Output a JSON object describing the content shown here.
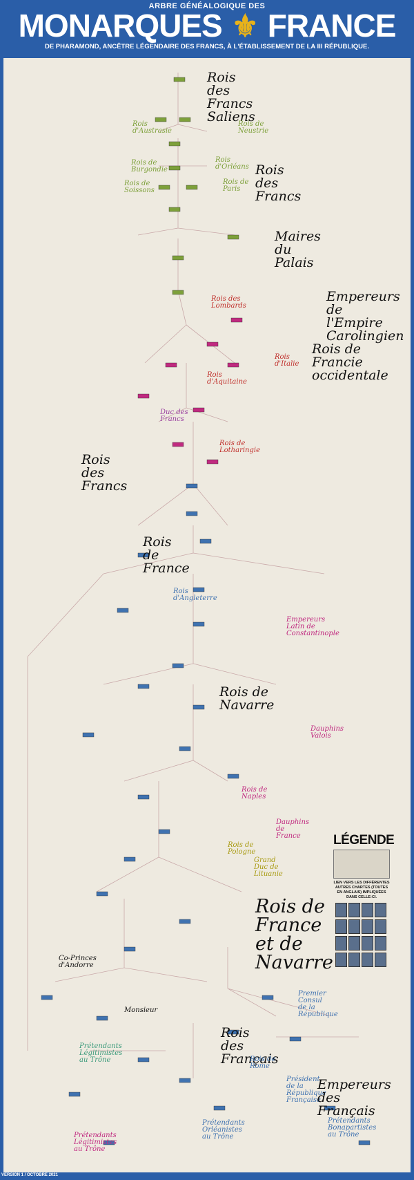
{
  "header": {
    "sup_title": "ARBRE GÉNÉALOGIQUE DES",
    "title_left": "MONARQUES",
    "title_right": "FRANCE",
    "fleur_icon": "fleur-de-lis-icon",
    "subtitle": "DE PHARAMOND, ANCÊTRE LÉGENDAIRE DES FRANCS, À L'ÉTABLISSEMENT DE LA III RÉPUBLIQUE."
  },
  "sections": {
    "rois_francs_saliens": "Rois des Francs Saliens",
    "rois_austrasie": "Rois d'Austrasie",
    "rois_neustrie": "Rois de Neustrie",
    "rois_burgondie": "Rois de Burgondie",
    "rois_orleans": "Rois d'Orléans",
    "rois_des_francs_1": "Rois des Francs",
    "rois_soissons": "Rois de Soissons",
    "rois_paris": "Rois de Paris",
    "maires_palais": "Maires du Palais",
    "empereurs_carolingien": "Empereurs de l'Empire Carolingien",
    "rois_lombards": "Rois des Lombards",
    "rois_francie": "Rois de Francie occidentale",
    "rois_italie": "Rois d'Italie",
    "rois_aquitaine": "Rois d'Aquitaine",
    "duc_francs": "Duc des Francs",
    "rois_lotharingie": "Rois de Lotharingie",
    "rois_des_francs_2": "Rois des Francs",
    "rois_france": "Rois de France",
    "rois_angleterre": "Rois d'Angleterre",
    "empereurs_latin": "Empereurs Latin de Constantinople",
    "rois_navarre": "Rois de Navarre",
    "dauphins_valois": "Dauphins Valois",
    "rois_naples": "Rois de Naples",
    "dauphins_france": "Dauphins de France",
    "rois_pologne": "Rois de Pologne",
    "grand_duc_lituanie": "Grand Duc de Lituanie",
    "rois_france_navarre": "Rois de France et de Navarre",
    "co_princes_andorre": "Co-Princes d'Andorre",
    "monsieur": "Monsieur",
    "premier_consul": "Premier Consul de la République",
    "rois_des_francais": "Rois des Français",
    "rois_rome": "Rois de Rome",
    "president_republique": "Président de la République Française",
    "empereurs_francais": "Empereurs des Français",
    "pretendants_legitimistes_1": "Prétendants Légitimistes au Trône",
    "pretendants_legitimistes_2": "Prétendants Légitimistes au Trône",
    "pretendants_orleanistes": "Prétendants Orléanistes au Trône",
    "pretendants_bonapartistes": "Prétendants Bonapartistes au Trône"
  },
  "legend": {
    "title": "LÉGENDE",
    "links_text": "LIEN VERS LES DIFFÉRENTES AUTRES CHARTES (TOUTES EN ANGLAIS) IMPLIQUÉES DANS CELLE-CI."
  },
  "footer": {
    "version": "VERSION 1 / OCTOBRE 2021"
  },
  "colors": {
    "frame": "#2a5ea8",
    "parchment": "#eeeae0",
    "merovingian": "#7da03a",
    "carolingian": "#c02a80",
    "capetian": "#3f72b0",
    "lines": "#c9a9a9"
  }
}
